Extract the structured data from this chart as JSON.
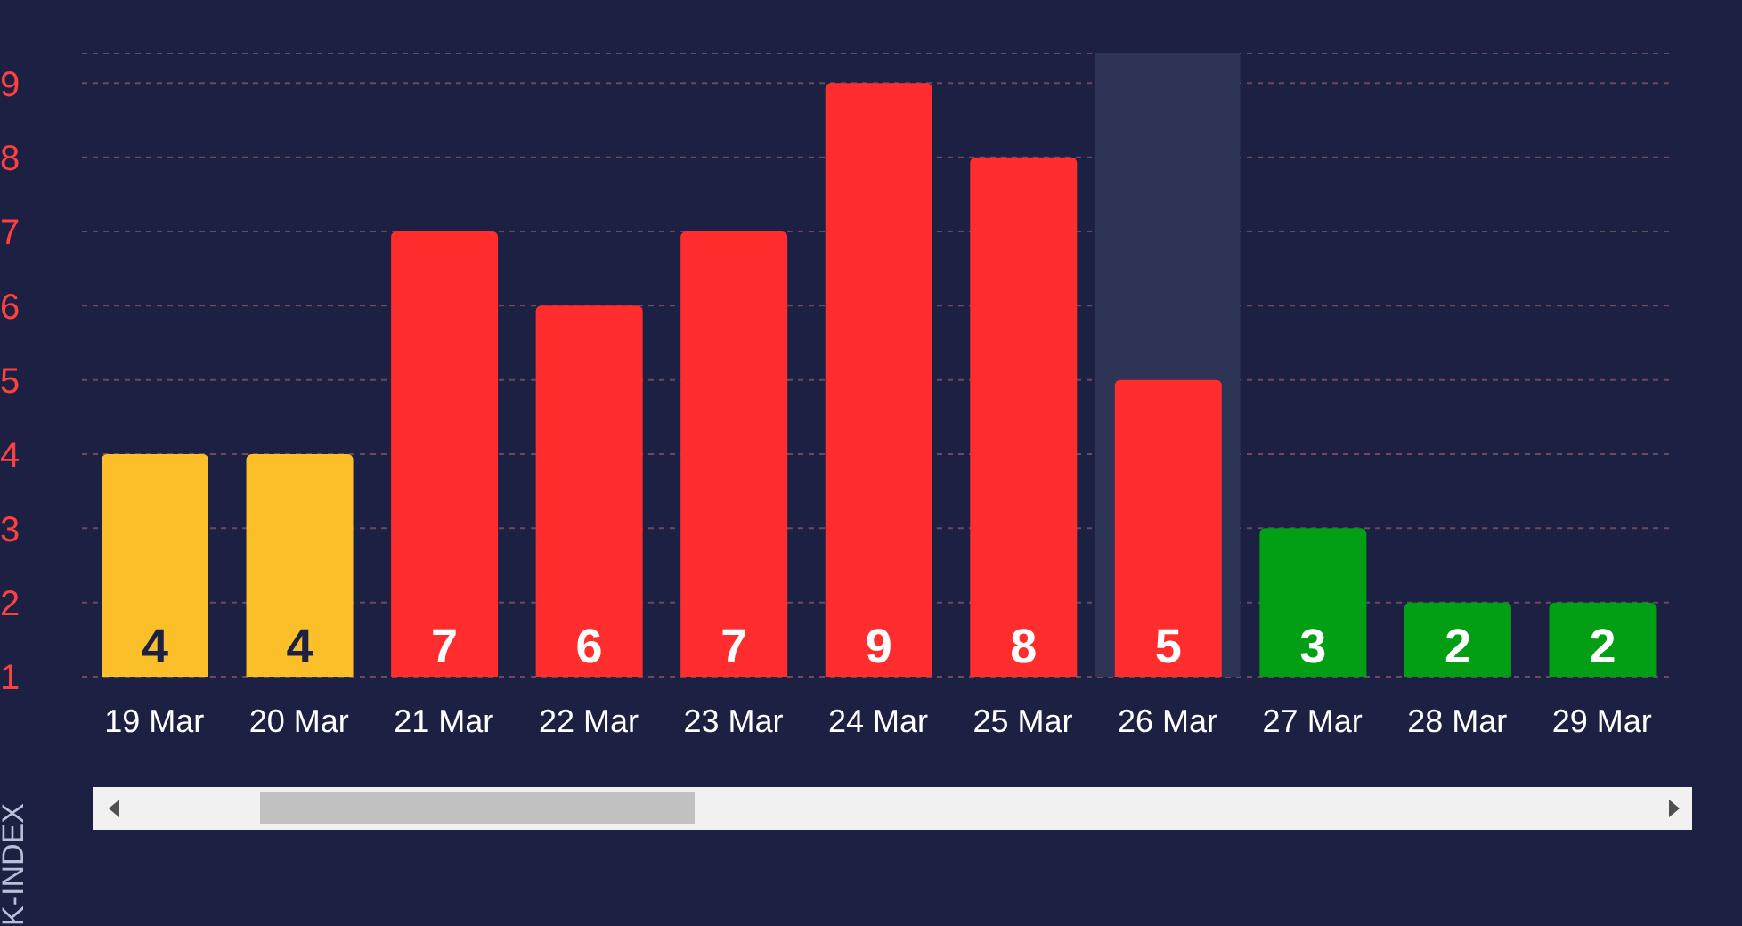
{
  "chart_data": {
    "type": "bar",
    "ylabel": "K-INDEX",
    "categories": [
      "19 Mar",
      "20 Mar",
      "21 Mar",
      "22 Mar",
      "23 Mar",
      "24 Mar",
      "25 Mar",
      "26 Mar",
      "27 Mar",
      "28 Mar",
      "29 Mar"
    ],
    "values": [
      4,
      4,
      7,
      6,
      7,
      9,
      8,
      5,
      3,
      2,
      2
    ],
    "colors": [
      "#fbbf2a",
      "#fbbf2a",
      "#ff2d2d",
      "#ff2d2d",
      "#ff2d2d",
      "#ff2d2d",
      "#ff2d2d",
      "#ff2d2d",
      "#029f14",
      "#029f14",
      "#029f14"
    ],
    "ylim": [
      1,
      9.4
    ],
    "yticks": [
      1,
      2,
      3,
      4,
      5,
      6,
      7,
      8,
      9
    ],
    "bands": [
      {
        "axis": "x",
        "from": "26 Mar",
        "to": "26 Mar",
        "color": "#2e3456"
      }
    ],
    "grid": "y",
    "data_labels": true
  }
}
